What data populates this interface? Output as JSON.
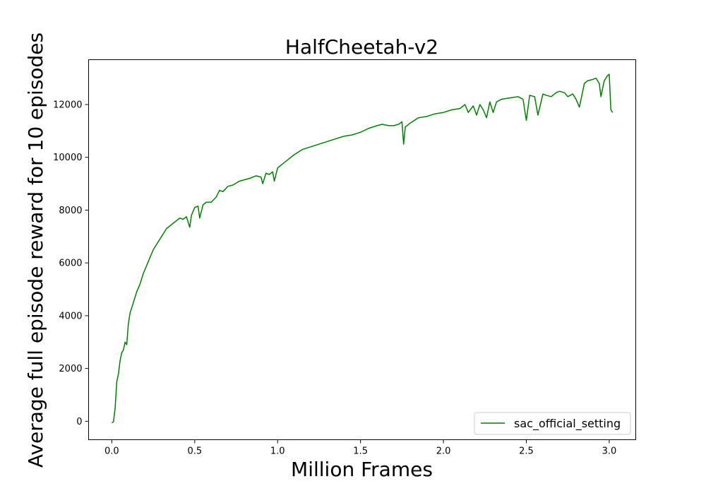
{
  "chart_data": {
    "type": "line",
    "title": "HalfCheetah-v2",
    "xlabel": "Million Frames",
    "ylabel": "Average full episode reward for 10 episodes",
    "xlim": [
      -0.14,
      3.16
    ],
    "ylim": [
      -700,
      13700
    ],
    "xticks": [
      0.0,
      0.5,
      1.0,
      1.5,
      2.0,
      2.5,
      3.0
    ],
    "xtick_labels": [
      "0.0",
      "0.5",
      "1.0",
      "1.5",
      "2.0",
      "2.5",
      "3.0"
    ],
    "yticks": [
      0,
      2000,
      4000,
      6000,
      8000,
      10000,
      12000
    ],
    "ytick_labels": [
      "0",
      "2000",
      "4000",
      "6000",
      "8000",
      "10000",
      "12000"
    ],
    "grid": false,
    "legend_position": "lower-right",
    "series": [
      {
        "name": "sac_official_setting",
        "color": "#008000",
        "x": [
          0.0,
          0.01,
          0.02,
          0.03,
          0.04,
          0.05,
          0.06,
          0.07,
          0.08,
          0.09,
          0.1,
          0.11,
          0.12,
          0.13,
          0.15,
          0.17,
          0.19,
          0.21,
          0.23,
          0.25,
          0.27,
          0.29,
          0.31,
          0.33,
          0.35,
          0.37,
          0.39,
          0.41,
          0.43,
          0.45,
          0.47,
          0.48,
          0.5,
          0.52,
          0.53,
          0.55,
          0.57,
          0.6,
          0.63,
          0.65,
          0.67,
          0.7,
          0.73,
          0.77,
          0.8,
          0.83,
          0.87,
          0.9,
          0.91,
          0.93,
          0.95,
          0.97,
          0.98,
          1.0,
          1.05,
          1.1,
          1.15,
          1.2,
          1.25,
          1.3,
          1.35,
          1.4,
          1.45,
          1.5,
          1.55,
          1.6,
          1.63,
          1.67,
          1.7,
          1.73,
          1.75,
          1.76,
          1.77,
          1.8,
          1.85,
          1.9,
          1.95,
          2.0,
          2.05,
          2.1,
          2.13,
          2.15,
          2.18,
          2.2,
          2.22,
          2.24,
          2.26,
          2.28,
          2.3,
          2.32,
          2.35,
          2.4,
          2.45,
          2.48,
          2.5,
          2.52,
          2.55,
          2.57,
          2.6,
          2.62,
          2.65,
          2.68,
          2.7,
          2.73,
          2.75,
          2.78,
          2.8,
          2.82,
          2.85,
          2.87,
          2.9,
          2.92,
          2.94,
          2.95,
          2.97,
          2.99,
          3.0,
          3.01,
          3.02
        ],
        "y": [
          -60,
          -20,
          500,
          1500,
          1800,
          2300,
          2600,
          2700,
          3000,
          2900,
          3700,
          4100,
          4300,
          4500,
          4900,
          5200,
          5600,
          5900,
          6200,
          6500,
          6700,
          6900,
          7100,
          7300,
          7400,
          7500,
          7600,
          7700,
          7650,
          7750,
          7350,
          7800,
          8100,
          8150,
          7700,
          8200,
          8300,
          8300,
          8500,
          8750,
          8700,
          8900,
          8950,
          9100,
          9150,
          9200,
          9300,
          9250,
          9000,
          9400,
          9350,
          9450,
          9100,
          9600,
          9850,
          10100,
          10300,
          10400,
          10500,
          10600,
          10700,
          10800,
          10850,
          10950,
          11100,
          11200,
          11250,
          11200,
          11200,
          11250,
          11350,
          10500,
          11150,
          11300,
          11500,
          11550,
          11650,
          11700,
          11800,
          11850,
          12000,
          11700,
          11950,
          11600,
          12000,
          11800,
          11500,
          12100,
          11700,
          12100,
          12200,
          12250,
          12300,
          12200,
          11400,
          12350,
          12300,
          11600,
          12400,
          12350,
          12300,
          12450,
          12500,
          12450,
          12300,
          12400,
          12200,
          11900,
          12800,
          12900,
          12950,
          13000,
          12800,
          12300,
          12900,
          13100,
          13150,
          11800,
          11700
        ]
      }
    ]
  }
}
